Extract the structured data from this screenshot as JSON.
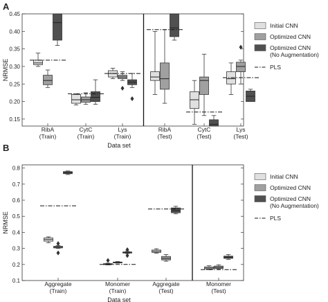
{
  "chart_data": [
    {
      "panel_label": "A",
      "type": "box",
      "xlabel": "Data set",
      "ylabel": "NRMSE",
      "ylim": [
        0.13,
        0.45
      ],
      "yticks": [
        "0.45",
        "0.40",
        "0.35",
        "0.30",
        "0.25",
        "0.20",
        "0.15"
      ],
      "ytick_values": [
        0.45,
        0.4,
        0.35,
        0.3,
        0.25,
        0.2,
        0.15
      ],
      "legend": {
        "placement": "right",
        "entries": [
          {
            "label": "Initial CNN",
            "color": "#e0e0e0"
          },
          {
            "label": "Optimized CNN",
            "color": "#a0a0a0"
          },
          {
            "label": "Optimized CNN\n(No Augmentation)",
            "color": "#505050"
          },
          {
            "label": "PLS",
            "color": "#000000"
          }
        ]
      },
      "divider_after_group": 2,
      "groups": [
        {
          "label": "RibA\n(Train)",
          "pls": 0.318,
          "boxes": [
            {
              "series": "Initial CNN",
              "min": 0.3,
              "q1": 0.305,
              "median": 0.31,
              "q3": 0.318,
              "max": 0.338,
              "outliers": []
            },
            {
              "series": "Optimized CNN",
              "min": 0.24,
              "q1": 0.248,
              "median": 0.26,
              "q3": 0.275,
              "max": 0.29,
              "outliers": []
            },
            {
              "series": "Optimized CNN (No Augmentation)",
              "min": 0.36,
              "q1": 0.375,
              "median": 0.425,
              "q3": 0.45,
              "max": 0.45,
              "outliers": []
            }
          ]
        },
        {
          "label": "CytC\n(Train)",
          "pls": 0.222,
          "boxes": [
            {
              "series": "Initial CNN",
              "min": 0.19,
              "q1": 0.195,
              "median": 0.205,
              "q3": 0.22,
              "max": 0.222,
              "outliers": []
            },
            {
              "series": "Optimized CNN",
              "min": 0.192,
              "q1": 0.198,
              "median": 0.205,
              "q3": 0.213,
              "max": 0.225,
              "outliers": []
            },
            {
              "series": "Optimized CNN (No Augmentation)",
              "min": 0.192,
              "q1": 0.2,
              "median": 0.212,
              "q3": 0.228,
              "max": 0.262,
              "outliers": []
            }
          ]
        },
        {
          "label": "Lys\n(Train)",
          "pls": 0.28,
          "boxes": [
            {
              "series": "Initial CNN",
              "min": 0.265,
              "q1": 0.27,
              "median": 0.28,
              "q3": 0.288,
              "max": 0.295,
              "outliers": []
            },
            {
              "series": "Optimized CNN",
              "min": 0.26,
              "q1": 0.265,
              "median": 0.27,
              "q3": 0.275,
              "max": 0.285,
              "outliers": [
                0.238
              ]
            },
            {
              "series": "Optimized CNN (No Augmentation)",
              "min": 0.24,
              "q1": 0.248,
              "median": 0.255,
              "q3": 0.262,
              "max": 0.28,
              "outliers": [
                0.208
              ]
            }
          ]
        },
        {
          "label": "RibA\n(Test)",
          "pls": 0.405,
          "boxes": [
            {
              "series": "Initial CNN",
              "min": 0.22,
              "q1": 0.26,
              "median": 0.27,
              "q3": 0.285,
              "max": 0.4,
              "outliers": []
            },
            {
              "series": "Optimized CNN",
              "min": 0.195,
              "q1": 0.235,
              "median": 0.265,
              "q3": 0.31,
              "max": 0.405,
              "outliers": []
            },
            {
              "series": "Optimized CNN (No Augmentation)",
              "min": 0.375,
              "q1": 0.385,
              "median": 0.41,
              "q3": 0.45,
              "max": 0.45,
              "outliers": []
            }
          ]
        },
        {
          "label": "CytC\n(Test)",
          "pls": 0.17,
          "boxes": [
            {
              "series": "Initial CNN",
              "min": 0.135,
              "q1": 0.18,
              "median": 0.205,
              "q3": 0.228,
              "max": 0.26,
              "outliers": []
            },
            {
              "series": "Optimized CNN",
              "min": 0.16,
              "q1": 0.22,
              "median": 0.26,
              "q3": 0.27,
              "max": 0.335,
              "outliers": []
            },
            {
              "series": "Optimized CNN (No Augmentation)",
              "min": 0.13,
              "q1": 0.13,
              "median": 0.135,
              "q3": 0.148,
              "max": 0.16,
              "outliers": []
            }
          ]
        },
        {
          "label": "Lys\n(Test)",
          "pls": 0.268,
          "boxes": [
            {
              "series": "Initial CNN",
              "min": 0.22,
              "q1": 0.25,
              "median": 0.265,
              "q3": 0.285,
              "max": 0.31,
              "outliers": []
            },
            {
              "series": "Optimized CNN",
              "min": 0.25,
              "q1": 0.285,
              "median": 0.3,
              "q3": 0.312,
              "max": 0.318,
              "outliers": [
                0.355
              ]
            },
            {
              "series": "Optimized CNN (No Augmentation)",
              "min": 0.2,
              "q1": 0.2,
              "median": 0.215,
              "q3": 0.23,
              "max": 0.235,
              "outliers": []
            }
          ]
        }
      ]
    },
    {
      "panel_label": "B",
      "type": "box",
      "xlabel": "Data set",
      "ylabel": "NRMSE",
      "ylim": [
        0.1,
        0.82
      ],
      "yticks": [
        "0.8",
        "0.7",
        "0.6",
        "0.5",
        "0.4",
        "0.3",
        "0.2",
        "0.1"
      ],
      "ytick_values": [
        0.8,
        0.7,
        0.6,
        0.5,
        0.4,
        0.3,
        0.2,
        0.1
      ],
      "legend": {
        "placement": "right",
        "entries": [
          {
            "label": "Initial CNN",
            "color": "#e0e0e0"
          },
          {
            "label": "Optimized CNN",
            "color": "#a0a0a0"
          },
          {
            "label": "Optimized CNN\n(No Augmentation)",
            "color": "#505050"
          },
          {
            "label": "PLS",
            "color": "#000000"
          }
        ]
      },
      "divider_after_group": 2,
      "groups": [
        {
          "label": "Aggregate\n(Train)",
          "pls": 0.565,
          "boxes": [
            {
              "series": "Initial CNN",
              "min": 0.335,
              "q1": 0.345,
              "median": 0.355,
              "q3": 0.365,
              "max": 0.372,
              "outliers": []
            },
            {
              "series": "Optimized CNN",
              "min": 0.3,
              "q1": 0.303,
              "median": 0.308,
              "q3": 0.313,
              "max": 0.318,
              "outliers": [
                0.272,
                0.33
              ]
            },
            {
              "series": "Optimized CNN (No Augmentation)",
              "min": 0.76,
              "q1": 0.765,
              "median": 0.772,
              "q3": 0.778,
              "max": 0.782,
              "outliers": []
            }
          ]
        },
        {
          "label": "Monomer\n(Train)",
          "pls": 0.2,
          "boxes": [
            {
              "series": "Initial CNN",
              "min": 0.197,
              "q1": 0.199,
              "median": 0.202,
              "q3": 0.205,
              "max": 0.208,
              "outliers": [
                0.225
              ]
            },
            {
              "series": "Optimized CNN",
              "min": 0.208,
              "q1": 0.21,
              "median": 0.212,
              "q3": 0.215,
              "max": 0.218,
              "outliers": []
            },
            {
              "series": "Optimized CNN (No Augmentation)",
              "min": 0.268,
              "q1": 0.271,
              "median": 0.274,
              "q3": 0.278,
              "max": 0.282,
              "outliers": [
                0.255,
                0.292
              ]
            }
          ]
        },
        {
          "label": "Aggregate\n(Test)",
          "pls": 0.545,
          "boxes": [
            {
              "series": "Initial CNN",
              "min": 0.27,
              "q1": 0.275,
              "median": 0.282,
              "q3": 0.29,
              "max": 0.298,
              "outliers": []
            },
            {
              "series": "Optimized CNN",
              "min": 0.22,
              "q1": 0.228,
              "median": 0.238,
              "q3": 0.25,
              "max": 0.262,
              "outliers": []
            },
            {
              "series": "Optimized CNN (No Augmentation)",
              "min": 0.515,
              "q1": 0.522,
              "median": 0.535,
              "q3": 0.552,
              "max": 0.562,
              "outliers": []
            }
          ]
        },
        {
          "label": "Monomer\n(Test)",
          "pls": 0.168,
          "boxes": [
            {
              "series": "Initial CNN",
              "min": 0.168,
              "q1": 0.172,
              "median": 0.178,
              "q3": 0.185,
              "max": 0.192,
              "outliers": []
            },
            {
              "series": "Optimized CNN",
              "min": 0.17,
              "q1": 0.175,
              "median": 0.182,
              "q3": 0.19,
              "max": 0.198,
              "outliers": []
            },
            {
              "series": "Optimized CNN (No Augmentation)",
              "min": 0.232,
              "q1": 0.238,
              "median": 0.245,
              "q3": 0.252,
              "max": 0.262,
              "outliers": []
            }
          ]
        }
      ]
    }
  ]
}
